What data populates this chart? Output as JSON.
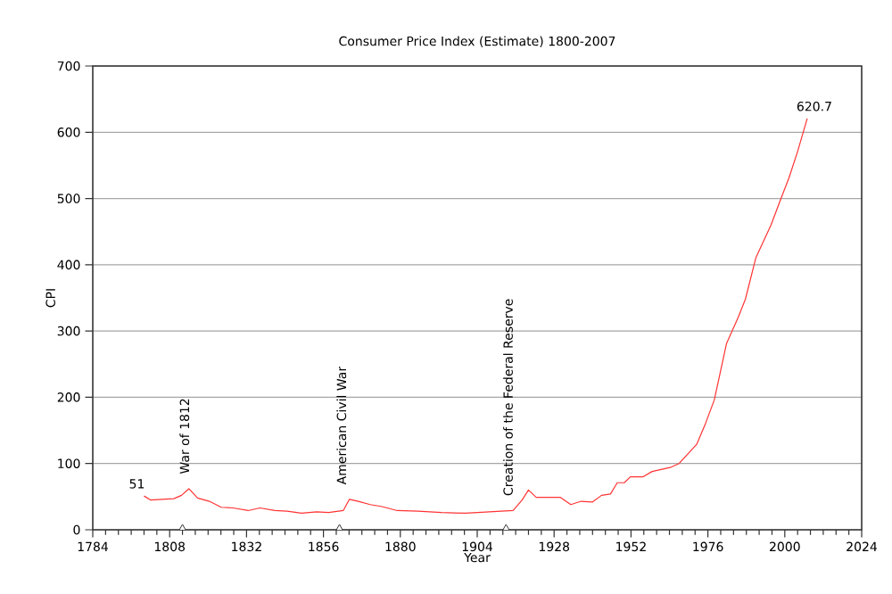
{
  "chart_data": {
    "type": "line",
    "title": "Consumer Price Index (Estimate) 1800-2007",
    "xlabel": "Year",
    "ylabel": "CPI",
    "x": [
      1800,
      1802,
      1805.6,
      1809.3,
      1811.7,
      1814,
      1816.7,
      1820.4,
      1824.1,
      1827.8,
      1832.5,
      1836.2,
      1840.8,
      1844.6,
      1849.2,
      1853.9,
      1857.6,
      1862.2,
      1864.1,
      1866.9,
      1870.6,
      1874.3,
      1879,
      1885.5,
      1892.9,
      1900.3,
      1907.8,
      1915.2,
      1918,
      1920,
      1922.4,
      1929.9,
      1933.2,
      1936.4,
      1940,
      1942.8,
      1945.6,
      1947.7,
      1949.9,
      1951.8,
      1955.8,
      1958.6,
      1964.2,
      1967,
      1972.5,
      1975.3,
      1978,
      1981.8,
      1985.5,
      1987.7,
      1991,
      1995.7,
      1998.5,
      2001.3,
      2004,
      2007
    ],
    "series": [
      {
        "color": "#ff3333",
        "values": [
          51,
          45,
          46,
          47,
          52,
          62,
          48,
          43,
          34,
          33,
          29,
          33,
          29,
          28,
          25,
          27,
          26,
          29,
          46,
          43,
          38,
          35,
          29,
          28,
          26,
          25,
          27,
          29,
          45,
          60,
          49,
          49,
          38,
          43,
          42,
          52,
          54,
          71,
          71,
          80,
          80,
          88,
          94,
          100,
          129,
          161,
          196,
          281,
          321,
          348,
          411,
          460,
          496,
          531,
          571,
          620.7
        ]
      },
      {
        "type": "scatter",
        "color": "#333333",
        "marker": "triangle",
        "x": [
          1812,
          1861,
          1913
        ],
        "values": [
          0,
          0,
          0
        ]
      }
    ],
    "xlim": [
      1784,
      2024
    ],
    "ylim": [
      0,
      700
    ],
    "xticks": [
      1784,
      1808,
      1832,
      1856,
      1880,
      1904,
      1928,
      1952,
      1976,
      2000,
      2024
    ],
    "yticks": [
      0,
      100,
      200,
      300,
      400,
      500,
      600,
      700
    ],
    "grid": "y",
    "annotations": [
      {
        "text": "51",
        "x": 1800,
        "y": 51
      },
      {
        "text": "620.7",
        "x": 2007,
        "y": 620.7
      },
      "War of 1812",
      "American Civil War",
      "Creation of the Federal Reserve"
    ]
  }
}
